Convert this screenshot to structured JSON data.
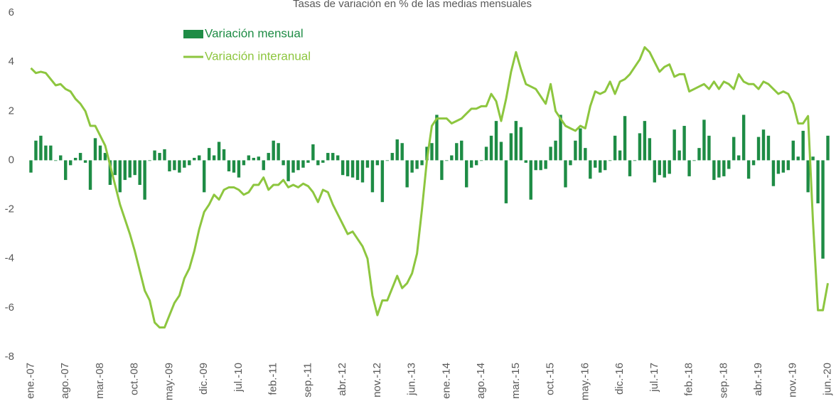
{
  "chart_data": {
    "type": "bar_line",
    "title": "Tasas de variación en % de las medias mensuales",
    "categories": [
      "ene.-07",
      null,
      null,
      null,
      null,
      null,
      null,
      "ago.-07",
      null,
      null,
      null,
      null,
      null,
      null,
      "mar.-08",
      null,
      null,
      null,
      null,
      null,
      null,
      "oct.-08",
      null,
      null,
      null,
      null,
      null,
      null,
      "may.-09",
      null,
      null,
      null,
      null,
      null,
      null,
      "dic.-09",
      null,
      null,
      null,
      null,
      null,
      null,
      "jul.-10",
      null,
      null,
      null,
      null,
      null,
      null,
      "feb.-11",
      null,
      null,
      null,
      null,
      null,
      null,
      "sep.-11",
      null,
      null,
      null,
      null,
      null,
      null,
      "abr.-12",
      null,
      null,
      null,
      null,
      null,
      null,
      "nov.-12",
      null,
      null,
      null,
      null,
      null,
      null,
      "jun.-13",
      null,
      null,
      null,
      null,
      null,
      null,
      "ene.-14",
      null,
      null,
      null,
      null,
      null,
      null,
      "ago.-14",
      null,
      null,
      null,
      null,
      null,
      null,
      "mar.-15",
      null,
      null,
      null,
      null,
      null,
      null,
      "oct.-15",
      null,
      null,
      null,
      null,
      null,
      null,
      "may.-16",
      null,
      null,
      null,
      null,
      null,
      null,
      "dic.-16",
      null,
      null,
      null,
      null,
      null,
      null,
      "jul.-17",
      null,
      null,
      null,
      null,
      null,
      null,
      "feb.-18",
      null,
      null,
      null,
      null,
      null,
      null,
      "sep.-18",
      null,
      null,
      null,
      null,
      null,
      null,
      "abr.-19",
      null,
      null,
      null,
      null,
      null,
      null,
      "nov.-19",
      null,
      null,
      null,
      null,
      null,
      null,
      "jun.-20"
    ],
    "series": [
      {
        "name": "Variación mensual",
        "type": "bar",
        "color": "#1e8c45",
        "values": [
          -0.5,
          0.8,
          1.0,
          0.6,
          0.6,
          0.0,
          0.2,
          -0.8,
          -0.2,
          0.1,
          0.3,
          -0.1,
          -1.2,
          0.9,
          0.6,
          0.3,
          -1.0,
          -0.6,
          -1.3,
          -0.8,
          -0.7,
          -0.6,
          -1.0,
          -1.6,
          0.0,
          0.4,
          0.3,
          0.45,
          -0.45,
          -0.4,
          -0.5,
          -0.3,
          -0.2,
          0.1,
          0.2,
          -1.3,
          0.5,
          0.2,
          0.75,
          0.45,
          -0.45,
          -0.5,
          -0.7,
          -0.2,
          0.2,
          0.1,
          0.15,
          -0.4,
          0.3,
          0.8,
          0.7,
          -0.2,
          -0.85,
          -0.5,
          -0.4,
          -0.3,
          -0.1,
          0.65,
          -0.2,
          -0.1,
          0.3,
          0.3,
          0.2,
          -0.6,
          -0.65,
          -0.7,
          -0.8,
          -0.9,
          -0.3,
          -1.3,
          -0.2,
          -1.7,
          0.0,
          0.3,
          0.85,
          0.7,
          -1.1,
          -0.5,
          -0.35,
          -0.2,
          0.55,
          0.7,
          1.85,
          -0.8,
          0.0,
          0.2,
          0.7,
          0.8,
          -1.1,
          -0.3,
          -0.2,
          0.0,
          0.55,
          1.0,
          1.6,
          0.75,
          -1.75,
          1.1,
          1.6,
          1.35,
          -0.1,
          -1.6,
          -0.4,
          -0.4,
          -0.35,
          0.55,
          0.8,
          1.85,
          -1.1,
          -0.2,
          0.8,
          1.3,
          0.5,
          -0.75,
          -0.3,
          -0.5,
          -0.4,
          0.0,
          1.0,
          0.4,
          1.8,
          -0.65,
          0.0,
          1.1,
          1.6,
          0.9,
          -0.9,
          -0.6,
          -0.7,
          -0.55,
          1.25,
          0.4,
          1.4,
          -0.65,
          0.0,
          0.5,
          1.65,
          1.0,
          -0.8,
          -0.7,
          -0.65,
          -0.35,
          0.95,
          0.2,
          1.85,
          -0.75,
          -0.2,
          0.95,
          1.25,
          1.0,
          -1.05,
          -0.55,
          -0.5,
          -0.4,
          0.8,
          0.15,
          1.2,
          -1.3,
          0.15,
          -1.75,
          -4.0,
          1.0
        ]
      },
      {
        "name": "Variación interanual",
        "type": "line",
        "color": "#8dc63f",
        "values": [
          3.75,
          3.55,
          3.6,
          3.55,
          3.3,
          3.05,
          3.1,
          2.9,
          2.8,
          2.5,
          2.3,
          2.0,
          1.4,
          1.4,
          1.0,
          0.6,
          -0.2,
          -1.0,
          -1.8,
          -2.4,
          -3.0,
          -3.7,
          -4.5,
          -5.3,
          -5.7,
          -6.6,
          -6.8,
          -6.8,
          -6.3,
          -5.8,
          -5.5,
          -4.8,
          -4.4,
          -3.7,
          -2.8,
          -2.1,
          -1.8,
          -1.4,
          -1.6,
          -1.2,
          -1.1,
          -1.1,
          -1.2,
          -1.4,
          -1.3,
          -1.0,
          -1.0,
          -0.7,
          -1.2,
          -1.0,
          -1.0,
          -0.8,
          -1.1,
          -1.0,
          -1.1,
          -0.95,
          -1.05,
          -1.3,
          -1.7,
          -1.2,
          -1.3,
          -1.8,
          -2.2,
          -2.6,
          -3.0,
          -2.9,
          -3.2,
          -3.5,
          -4.0,
          -5.5,
          -6.3,
          -5.7,
          -5.7,
          -5.2,
          -4.7,
          -5.2,
          -5.0,
          -4.6,
          -3.8,
          -2.0,
          0.0,
          1.4,
          1.7,
          1.7,
          1.7,
          1.5,
          1.6,
          1.7,
          1.9,
          2.1,
          2.1,
          2.2,
          2.2,
          2.7,
          2.4,
          1.6,
          2.5,
          3.6,
          4.4,
          3.7,
          3.1,
          3.0,
          2.9,
          2.6,
          2.3,
          3.1,
          2.0,
          1.7,
          1.4,
          1.3,
          1.2,
          1.4,
          1.3,
          2.2,
          2.8,
          2.7,
          2.8,
          3.2,
          2.7,
          3.2,
          3.3,
          3.5,
          3.8,
          4.1,
          4.6,
          4.4,
          4.0,
          3.6,
          3.8,
          3.9,
          3.4,
          3.5,
          3.5,
          2.8,
          2.9,
          3.0,
          3.1,
          2.9,
          3.2,
          2.9,
          3.2,
          3.1,
          2.9,
          3.5,
          3.2,
          3.1,
          3.1,
          2.9,
          3.2,
          3.1,
          2.9,
          2.7,
          2.8,
          2.7,
          2.3,
          1.5,
          1.5,
          1.8,
          -2.5,
          -6.1,
          -6.1,
          -5.0
        ]
      }
    ],
    "ylim": [
      -8,
      6
    ],
    "yticks": [
      -8,
      -6,
      -4,
      -2,
      0,
      2,
      4,
      6
    ],
    "legend": "upper left"
  }
}
